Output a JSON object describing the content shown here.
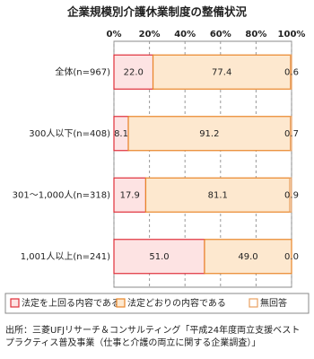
{
  "chart_data": {
    "type": "stacked-bar-horizontal",
    "title": "企業規模別介護休業制度の整備状況",
    "categories": [
      "全体(n=967)",
      "300人以下(n=408)",
      "301～1,000人(n=318)",
      "1,001人以上(n=241)"
    ],
    "series": [
      {
        "name": "法定を上回る内容である",
        "color": "#e0303a",
        "fill": "#fde3e3",
        "values": [
          22.0,
          8.1,
          17.9,
          51.0
        ],
        "value_labels": [
          "22.0",
          "8.1",
          "17.9",
          "51.0"
        ]
      },
      {
        "name": "法定どおりの内容である",
        "color": "#e8862a",
        "fill": "#fde8cf",
        "values": [
          77.4,
          91.2,
          81.1,
          49.0
        ],
        "value_labels": [
          "77.4",
          "91.2",
          "81.1",
          "49.0"
        ]
      },
      {
        "name": "無回答",
        "color": "#e8a060",
        "fill": "#ffffff",
        "values": [
          0.6,
          0.7,
          0.9,
          0.0
        ],
        "value_labels": [
          "0.6",
          "0.7",
          "0.9",
          "0.0"
        ]
      }
    ],
    "xlim": [
      0,
      100
    ],
    "xticks": [
      {
        "value": 0,
        "label": "0%"
      },
      {
        "value": 20,
        "label": "20%"
      },
      {
        "value": 40,
        "label": "40%"
      },
      {
        "value": 60,
        "label": "60%"
      },
      {
        "value": 80,
        "label": "80%"
      },
      {
        "value": 100,
        "label": "100%"
      }
    ],
    "grid": true,
    "source": "出所：三菱UFJリサーチ＆コンサルティング「平成24年度両立支援ベストプラクティス普及事業（仕事と介護の両立に関する企業調査）」"
  }
}
